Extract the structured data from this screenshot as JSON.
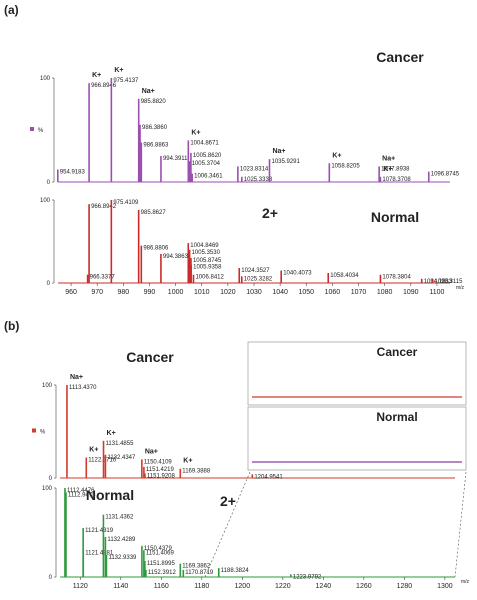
{
  "chart_data": [
    {
      "type": "spectrum",
      "panel": "(a)",
      "title": "Cancer",
      "color": "#9b4fb0",
      "ylabel": "%",
      "xlim": [
        955,
        1105
      ],
      "ylim": [
        0,
        100
      ],
      "yticks": [
        0,
        100
      ],
      "x": [
        954.9183,
        966.8946,
        975.4137,
        985.882,
        986.386,
        986.8863,
        994.3911,
        1004.8671,
        1005.862,
        1005.3704,
        1006.3461,
        1023.8314,
        1025.3333,
        1035.9291,
        1058.8205,
        1077.8938,
        1078.3708,
        1096.8745
      ],
      "labels": [
        "954.9183",
        "966.8946",
        "975.4137",
        "985.8820",
        "986.3860",
        "986.8863",
        "994.3911",
        "1004.8671",
        "1005.8620",
        "1005.3704",
        "1006.3461",
        "1023.8314",
        "1025.3333",
        "1035.9291",
        "1058.8205",
        "1077.8938",
        "1078.3708",
        "1096.8745"
      ],
      "values": [
        12,
        95,
        100,
        80,
        55,
        38,
        25,
        40,
        28,
        20,
        8,
        15,
        5,
        22,
        18,
        15,
        5,
        10
      ],
      "adducts": [
        null,
        "K+",
        "K+",
        "Na+",
        null,
        null,
        null,
        "K+",
        null,
        null,
        null,
        null,
        null,
        "Na+",
        "K+",
        "Na+",
        "K+",
        null
      ]
    },
    {
      "type": "spectrum",
      "title": "Normal",
      "charge": "2+",
      "color": "#cc2a2a",
      "xlim": [
        955,
        1105
      ],
      "ylim": [
        0,
        100
      ],
      "yticks": [
        0,
        100
      ],
      "xticks": [
        960,
        970,
        980,
        990,
        1000,
        1010,
        1020,
        1030,
        1040,
        1050,
        1060,
        1070,
        1080,
        1090,
        1100
      ],
      "xlabel": "m/z",
      "x": [
        966.3377,
        966.8942,
        975.4109,
        985.8627,
        986.8806,
        994.3863,
        1004.8469,
        1005.353,
        1005.8745,
        1005.9358,
        1006.8412,
        1024.3527,
        1025.3282,
        1040.4073,
        1058.4034,
        1078.3804,
        1094.1833,
        1098.3115
      ],
      "labels": [
        "966.3377",
        "966.8942",
        "975.4109",
        "985.8627",
        "986.8806",
        "994.3863",
        "1004.8469",
        "1005.3530",
        "1005.8745",
        "1005.9358",
        "1006.8412",
        "1024.3527",
        "1025.3282",
        "1040.4073",
        "1058.4034",
        "1078.3804",
        "1094.1833",
        "1098.3115"
      ],
      "values": [
        10,
        95,
        100,
        88,
        45,
        35,
        48,
        40,
        30,
        22,
        10,
        18,
        8,
        15,
        12,
        10,
        5,
        5
      ]
    },
    {
      "type": "spectrum",
      "panel": "(b)",
      "title": "Cancer",
      "color": "#d23a2a",
      "ylabel": "%",
      "xlim": [
        1110,
        1305
      ],
      "ylim": [
        0,
        100
      ],
      "yticks": [
        0,
        100
      ],
      "insets": [
        "Cancer",
        "Normal"
      ],
      "x": [
        1113.437,
        1122.9716,
        1131.4855,
        1132.4347,
        1150.4109,
        1151.4219,
        1151.9208,
        1169.3888,
        1204.9541
      ],
      "labels": [
        "1113.4370",
        "1122.9716",
        "1131.4855",
        "1132.4347",
        "1150.4109",
        "1151.4219",
        "1151.9208",
        "1169.3888",
        "1204.9541"
      ],
      "values": [
        100,
        22,
        40,
        25,
        20,
        12,
        5,
        10,
        4
      ],
      "adducts": [
        "Na+",
        "K+",
        "K+",
        null,
        "Na+",
        null,
        null,
        "K+",
        null
      ]
    },
    {
      "type": "spectrum",
      "title": "Normal",
      "charge": "2+",
      "color": "#2e9a3e",
      "xlim": [
        1110,
        1305
      ],
      "ylim": [
        0,
        100
      ],
      "yticks": [
        0,
        100
      ],
      "xticks": [
        1120,
        1140,
        1160,
        1180,
        1200,
        1220,
        1240,
        1260,
        1280,
        1300
      ],
      "xlabel": "m/z",
      "x": [
        1112.4476,
        1112.9475,
        1121.4319,
        1121.4881,
        1131.4362,
        1132.4289,
        1132.9339,
        1150.4379,
        1151.4069,
        1151.8995,
        1152.3912,
        1169.3862,
        1170.8719,
        1188.3824,
        1223.9792
      ],
      "labels": [
        "1112.4476",
        "1112.9475",
        "1121.4319",
        "1121.4881",
        "1131.4362",
        "1132.4289",
        "1132.9339",
        "1150.4379",
        "1151.4069",
        "1151.8995",
        "1152.3912",
        "1169.3862",
        "1170.8719",
        "1188.3824",
        "1223.9792"
      ],
      "values": [
        100,
        95,
        55,
        30,
        70,
        45,
        25,
        35,
        30,
        18,
        8,
        15,
        8,
        10,
        3
      ]
    }
  ]
}
